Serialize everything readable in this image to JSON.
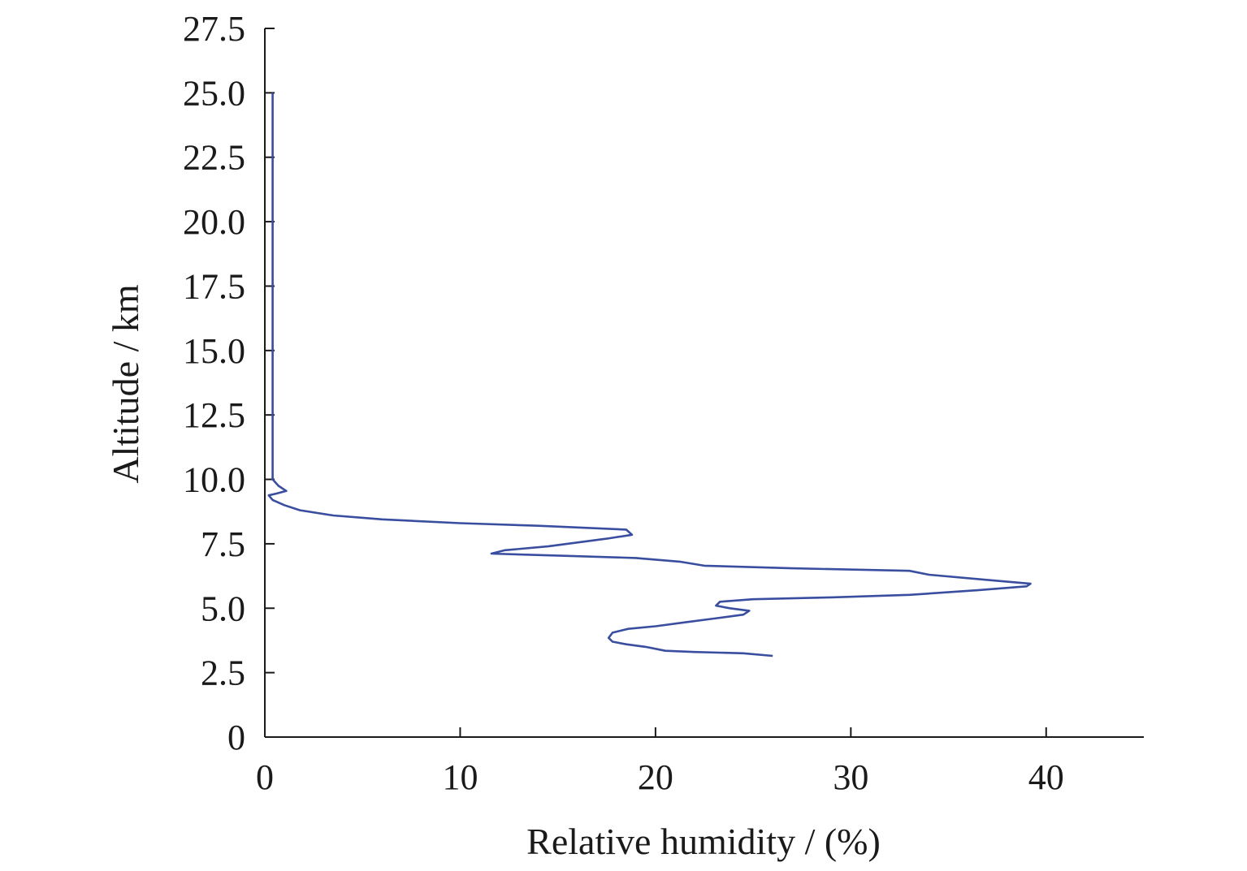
{
  "chart_data": {
    "type": "line",
    "xlabel": "Relative humidity / (%)",
    "ylabel": "Altitude / km",
    "xlim": [
      0,
      45
    ],
    "ylim": [
      0,
      27.5
    ],
    "x_ticks": [
      0,
      10,
      20,
      30,
      40
    ],
    "x_tick_labels": [
      "0",
      "10",
      "20",
      "30",
      "40"
    ],
    "y_ticks": [
      0,
      2.5,
      5.0,
      7.5,
      10.0,
      12.5,
      15.0,
      17.5,
      20.0,
      22.5,
      25.0,
      27.5
    ],
    "y_tick_labels": [
      "0",
      "2.5",
      "5.0",
      "7.5",
      "10.0",
      "12.5",
      "15.0",
      "17.5",
      "20.0",
      "22.5",
      "25.0",
      "27.5"
    ],
    "grid": false,
    "series": [
      {
        "color": "#3a4ea0",
        "points": [
          [
            26.0,
            3.15
          ],
          [
            24.5,
            3.25
          ],
          [
            22.0,
            3.3
          ],
          [
            20.5,
            3.35
          ],
          [
            19.5,
            3.5
          ],
          [
            18.5,
            3.6
          ],
          [
            17.8,
            3.7
          ],
          [
            17.6,
            3.85
          ],
          [
            17.8,
            4.05
          ],
          [
            18.6,
            4.2
          ],
          [
            20.0,
            4.3
          ],
          [
            21.5,
            4.45
          ],
          [
            23.0,
            4.6
          ],
          [
            24.5,
            4.75
          ],
          [
            24.8,
            4.9
          ],
          [
            23.8,
            5.0
          ],
          [
            23.1,
            5.1
          ],
          [
            23.3,
            5.25
          ],
          [
            25.0,
            5.35
          ],
          [
            29.0,
            5.42
          ],
          [
            33.0,
            5.52
          ],
          [
            36.5,
            5.7
          ],
          [
            39.0,
            5.85
          ],
          [
            39.2,
            5.95
          ],
          [
            37.0,
            6.1
          ],
          [
            34.0,
            6.3
          ],
          [
            33.0,
            6.45
          ],
          [
            27.0,
            6.55
          ],
          [
            22.5,
            6.65
          ],
          [
            21.3,
            6.8
          ],
          [
            19.0,
            6.95
          ],
          [
            15.5,
            7.03
          ],
          [
            11.6,
            7.12
          ],
          [
            12.3,
            7.25
          ],
          [
            14.5,
            7.4
          ],
          [
            16.0,
            7.55
          ],
          [
            17.5,
            7.7
          ],
          [
            18.8,
            7.85
          ],
          [
            18.5,
            8.05
          ],
          [
            14.0,
            8.2
          ],
          [
            10.0,
            8.3
          ],
          [
            6.0,
            8.45
          ],
          [
            3.5,
            8.6
          ],
          [
            1.8,
            8.8
          ],
          [
            1.0,
            9.0
          ],
          [
            0.4,
            9.2
          ],
          [
            0.2,
            9.38
          ],
          [
            0.6,
            9.45
          ],
          [
            1.1,
            9.55
          ],
          [
            0.7,
            9.75
          ],
          [
            0.4,
            10.0
          ],
          [
            0.4,
            12.0
          ],
          [
            0.4,
            15.0
          ],
          [
            0.4,
            18.0
          ],
          [
            0.4,
            21.0
          ],
          [
            0.4,
            25.0
          ]
        ]
      }
    ]
  }
}
